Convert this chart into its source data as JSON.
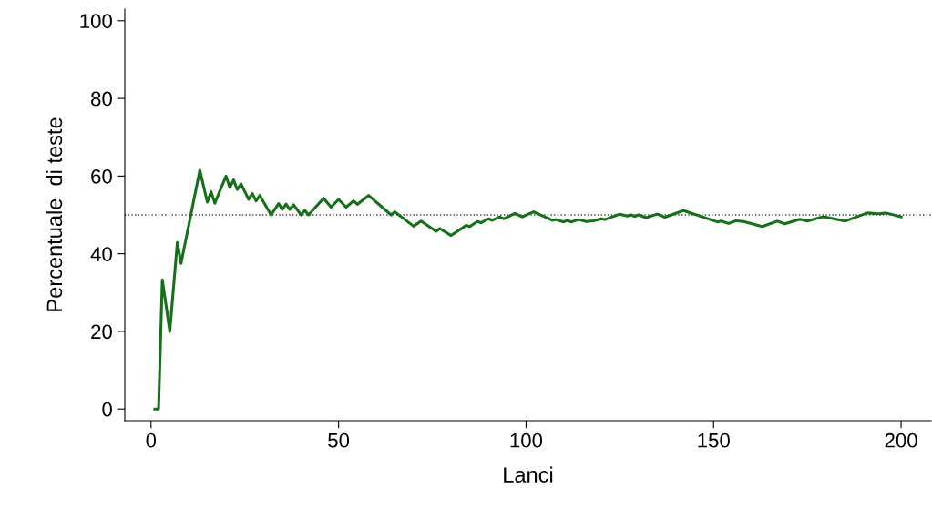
{
  "chart_data": {
    "type": "line",
    "xlabel": "Lanci",
    "ylabel": "Percentuale  di teste",
    "x": [
      1,
      2,
      3,
      5,
      7,
      8,
      13,
      15,
      16,
      17,
      20,
      21,
      22,
      23,
      24,
      26,
      27,
      28,
      29,
      32,
      34,
      35,
      36,
      37,
      38,
      40,
      41,
      42,
      46,
      48,
      50,
      52,
      54,
      55,
      58,
      64,
      65,
      70,
      72,
      76,
      77,
      80,
      84,
      85,
      87,
      88,
      90,
      91,
      93,
      94,
      97,
      99,
      102,
      107,
      108,
      110,
      111,
      112,
      114,
      116,
      118,
      120,
      121,
      125,
      127,
      128,
      129,
      130,
      132,
      135,
      137,
      142,
      151,
      152,
      154,
      156,
      158,
      163,
      167,
      169,
      173,
      175,
      179,
      180,
      185,
      191,
      194,
      196,
      200
    ],
    "series": [
      {
        "color": "#15701a",
        "values": [
          0,
          0,
          33.3,
          20,
          42.9,
          37.5,
          61.5,
          53.3,
          56,
          53,
          60,
          57,
          59,
          56.5,
          58,
          54,
          55.5,
          53.6,
          55,
          50,
          52.9,
          51.4,
          52.8,
          51.4,
          52.6,
          50,
          51.2,
          50,
          54.3,
          52,
          54,
          52,
          53.6,
          52.7,
          55,
          50,
          50.8,
          47.1,
          48.4,
          45.8,
          46.5,
          44.7,
          47.3,
          47,
          48.3,
          48,
          49,
          48.6,
          49.5,
          49,
          50.4,
          49.5,
          50.8,
          48.6,
          48.8,
          48.2,
          48.6,
          48.2,
          48.8,
          48.3,
          48.5,
          49,
          48.8,
          50.2,
          49.7,
          50,
          49.6,
          50,
          49.3,
          50.2,
          49.4,
          51.1,
          48.2,
          48.4,
          47.8,
          48.5,
          48.3,
          47,
          48.4,
          47.7,
          48.9,
          48.4,
          49.5,
          49.4,
          48.4,
          50.5,
          50.3,
          50.5,
          49.5
        ]
      }
    ],
    "xlim": [
      -7,
      208
    ],
    "ylim": [
      -3,
      103
    ],
    "xticks": [
      0,
      50,
      100,
      150,
      200
    ],
    "yticks": [
      0,
      20,
      40,
      60,
      80,
      100
    ],
    "ref_lines": [
      {
        "axis": "y",
        "value": 50,
        "color": "#404040",
        "line_style": "dotted"
      }
    ],
    "grid": false,
    "legend": false,
    "marker": "none",
    "line_style": "solid"
  }
}
